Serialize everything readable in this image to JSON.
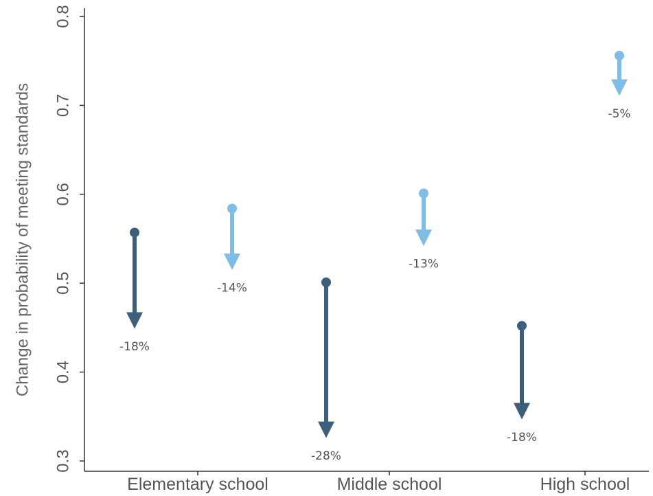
{
  "chart_data": {
    "type": "arrow",
    "title": "",
    "xlabel": "",
    "ylabel": "Change in probability of meeting standards",
    "ylim": [
      0.3,
      0.8
    ],
    "yticks": [
      0.3,
      0.4,
      0.5,
      0.6,
      0.7,
      0.8
    ],
    "ytick_labels": [
      "0.3",
      "0.4",
      "0.5",
      "0.6",
      "0.7",
      "0.8"
    ],
    "grid": false,
    "legend": "none",
    "categories": [
      "Elementary school",
      "Middle school",
      "High school"
    ],
    "series": [
      {
        "color": "#3d5f7a",
        "start": [
          0.557,
          0.501,
          0.452
        ],
        "end": [
          0.446,
          0.323,
          0.344
        ],
        "labels": [
          "-18%",
          "-28%",
          "-18%"
        ]
      },
      {
        "color": "#7dbde6",
        "start": [
          0.584,
          0.601,
          0.756
        ],
        "end": [
          0.512,
          0.539,
          0.708
        ],
        "labels": [
          "-14%",
          "-13%",
          "-5%"
        ]
      }
    ]
  }
}
